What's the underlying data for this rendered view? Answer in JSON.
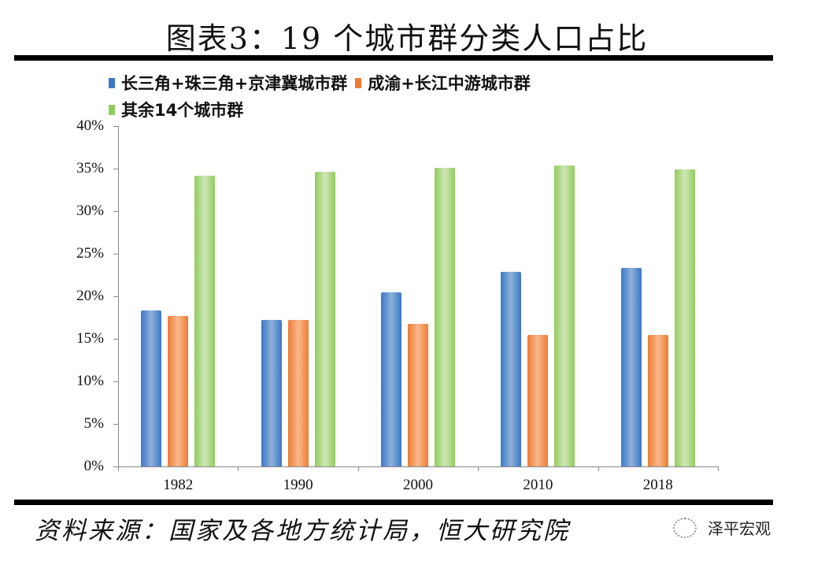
{
  "header": {
    "title": "图表3：19 个城市群分类人口占比"
  },
  "legend": {
    "items": [
      {
        "label": "长三角+珠三角+京津冀城市群",
        "color": "#3a78c8"
      },
      {
        "label": "成渝+长江中游城市群",
        "color": "#ee7c34"
      },
      {
        "label": "其余14个城市群",
        "color": "#92cc5c"
      }
    ]
  },
  "axes": {
    "y_ticks": [
      "40%",
      "35%",
      "30%",
      "25%",
      "20%",
      "15%",
      "10%",
      "5%",
      "0%"
    ],
    "x_ticks": [
      "1982",
      "1990",
      "2000",
      "2010",
      "2018"
    ]
  },
  "footer": {
    "source": "资料来源：国家及各地方统计局，恒大研究院",
    "watermark": "泽平宏观"
  },
  "chart_data": {
    "type": "bar",
    "title": "图表3：19 个城市群分类人口占比",
    "categories": [
      "1982",
      "1990",
      "2000",
      "2010",
      "2018"
    ],
    "series": [
      {
        "name": "长三角+珠三角+京津冀城市群",
        "color": "#3a78c8",
        "values": [
          18.3,
          17.2,
          20.5,
          22.9,
          23.3
        ]
      },
      {
        "name": "成渝+长江中游城市群",
        "color": "#ee7c34",
        "values": [
          17.7,
          17.2,
          16.8,
          15.5,
          15.5
        ]
      },
      {
        "name": "其余14个城市群",
        "color": "#92cc5c",
        "values": [
          34.2,
          34.6,
          35.1,
          35.4,
          34.9
        ]
      }
    ],
    "xlabel": "",
    "ylabel": "",
    "ylim": [
      0,
      40
    ],
    "yunit": "%",
    "grid": false,
    "legend_position": "top-left"
  }
}
